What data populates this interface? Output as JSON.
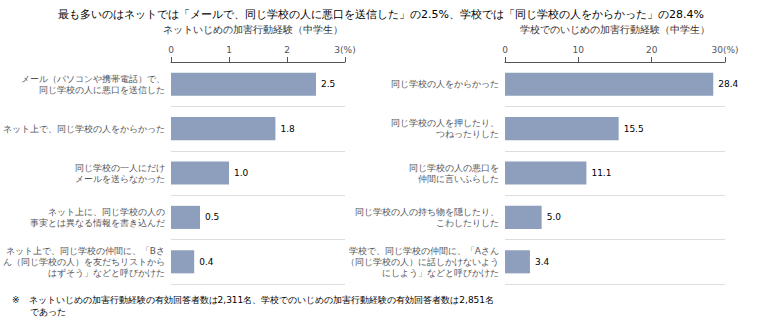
{
  "title": "最も多いのはネットでは「メールで、同じ学校の人に悪口を送信した」の2.5%、学校では「同じ学校の人をからかった」の28.4%",
  "footnote": "※　ネットいじめの加害行動経験の有効回答者数は2,311名、学校でのいじめの加害行動経験の有効回答者数は2,851名\n　　であった",
  "chart_data": [
    {
      "type": "bar",
      "orientation": "horizontal",
      "title": "ネットいじめの加害行動経験（中学生）",
      "categories": [
        "メール（パソコンや携帯電話）で、\n同じ学校の人に悪口を送信した",
        "ネット上で、同じ学校の人をからかった",
        "同じ学校の一人にだけ\nメールを送らなかった",
        "ネット上に、同じ学校の人の\n事実とは異なる情報を書き込んだ",
        "ネット上で、同じ学校の仲間に、「Bさ\nん（同じ学校の人）を友だちリストから\nはずそう」などと呼びかけた"
      ],
      "values": [
        2.5,
        1.8,
        1.0,
        0.5,
        0.4
      ],
      "value_labels": [
        "2.5",
        "1.8",
        "1.0",
        "0.5",
        "0.4"
      ],
      "data_labels": true,
      "color": "#8d9fbc",
      "xlim": [
        0,
        3
      ],
      "xticks": [
        0,
        1,
        2,
        {
          "value": 3,
          "label": "3(%)"
        }
      ],
      "grid": true
    },
    {
      "type": "bar",
      "orientation": "horizontal",
      "title": "学校でのいじめの加害行動経験（中学生）",
      "categories": [
        "同じ学校の人をからかった",
        "同じ学校の人を押したり、\nつねったりした",
        "同じ学校の人の悪口を\n仲間に言いふらした",
        "同じ学校の人の持ち物を隠したり、\nこわしたりした",
        "学校で、同じ学校の仲間に、「Aさん\n（同じ学校の人）に話しかけないよう\nにしよう」などと呼びかけた"
      ],
      "values": [
        28.4,
        15.5,
        11.1,
        5.0,
        3.4
      ],
      "value_labels": [
        "28.4",
        "15.5",
        "11.1",
        "5.0",
        "3.4"
      ],
      "data_labels": true,
      "color": "#8d9fbc",
      "xlim": [
        0,
        30
      ],
      "xticks": [
        0,
        10,
        20,
        {
          "value": 30,
          "label": "30(%)"
        }
      ],
      "grid": true
    }
  ]
}
